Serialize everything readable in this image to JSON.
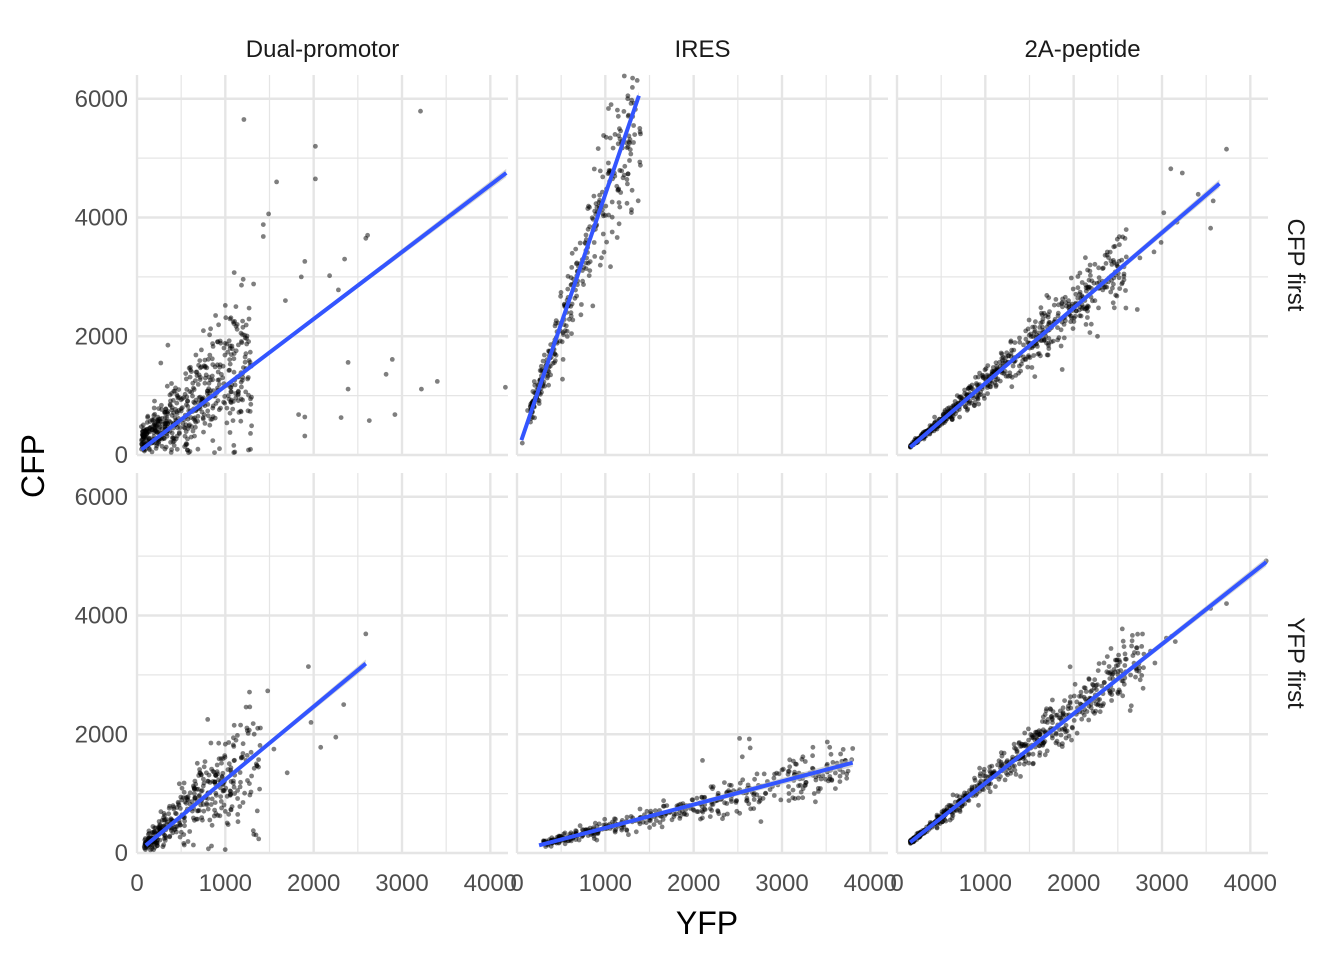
{
  "chart_data": {
    "type": "scatter",
    "xlabel": "YFP",
    "ylabel": "CFP",
    "xlim": [
      0,
      4200
    ],
    "ylim": [
      0,
      6400
    ],
    "x_ticks": [
      0,
      1000,
      2000,
      3000,
      4000
    ],
    "y_ticks": [
      0,
      2000,
      4000,
      6000
    ],
    "x_tick_labels": [
      "0",
      "1000",
      "2000",
      "3000",
      "4000"
    ],
    "y_tick_labels": [
      "0",
      "2000",
      "4000",
      "6000"
    ],
    "grid": true,
    "col_labels": [
      "Dual-promotor",
      "IRES",
      "2A-peptide"
    ],
    "row_labels": [
      "CFP first",
      "YFP first"
    ],
    "colors": {
      "points": "#000000",
      "line": "#3355ff",
      "ribbon": "#bdbdbd",
      "grid": "#e5e5e5"
    },
    "panels": [
      {
        "row": "CFP first",
        "col": "Dual-promotor",
        "fit": {
          "x": [
            50,
            4180
          ],
          "y": [
            90,
            4750
          ]
        },
        "cloud": {
          "n": 520,
          "x_range": [
            50,
            1300
          ],
          "slope": 1.05,
          "intercept": 200,
          "noise": 0.45,
          "seed": 11
        },
        "outliers": [
          [
            1210,
            5650
          ],
          [
            3210,
            5790
          ],
          [
            2020,
            5200
          ],
          [
            1580,
            4600
          ],
          [
            2020,
            4650
          ],
          [
            1490,
            4060
          ],
          [
            1430,
            3880
          ],
          [
            1430,
            3680
          ],
          [
            2610,
            3700
          ],
          [
            2590,
            3650
          ],
          [
            1860,
            3000
          ],
          [
            2180,
            3020
          ],
          [
            2280,
            2780
          ],
          [
            1900,
            3260
          ],
          [
            2350,
            3300
          ],
          [
            1680,
            2600
          ],
          [
            1120,
            2500
          ],
          [
            1000,
            2520
          ],
          [
            890,
            2350
          ],
          [
            1320,
            2880
          ],
          [
            2390,
            1560
          ],
          [
            2890,
            1610
          ],
          [
            2820,
            1360
          ],
          [
            3400,
            1240
          ],
          [
            3220,
            1110
          ],
          [
            4170,
            1140
          ],
          [
            2390,
            1110
          ],
          [
            2920,
            680
          ],
          [
            2630,
            580
          ],
          [
            2310,
            630
          ],
          [
            1900,
            640
          ],
          [
            1830,
            680
          ],
          [
            1900,
            320
          ],
          [
            350,
            1850
          ],
          [
            270,
            1550
          ]
        ]
      },
      {
        "row": "CFP first",
        "col": "IRES",
        "fit": {
          "x": [
            50,
            1380
          ],
          "y": [
            250,
            6050
          ]
        },
        "cloud": {
          "n": 330,
          "x_range": [
            150,
            1400
          ],
          "slope": 4.2,
          "intercept": 100,
          "noise": 0.12,
          "seed": 23
        },
        "outliers": [
          [
            60,
            200
          ],
          [
            1390,
            5500
          ],
          [
            1110,
            5400
          ],
          [
            1010,
            5350
          ],
          [
            120,
            750
          ]
        ]
      },
      {
        "row": "CFP first",
        "col": "2A-peptide",
        "fit": {
          "x": [
            150,
            3650
          ],
          "y": [
            130,
            4570
          ]
        },
        "cloud": {
          "n": 600,
          "x_range": [
            150,
            2600
          ],
          "slope": 1.27,
          "intercept": -50,
          "noise": 0.1,
          "seed": 37
        },
        "outliers": [
          [
            3730,
            5150
          ],
          [
            3100,
            4820
          ],
          [
            3230,
            4750
          ],
          [
            3410,
            4390
          ],
          [
            3580,
            4280
          ],
          [
            3020,
            4080
          ],
          [
            3170,
            3920
          ],
          [
            3550,
            3820
          ],
          [
            2750,
            3320
          ],
          [
            2910,
            3420
          ],
          [
            2460,
            2480
          ],
          [
            2720,
            2450
          ],
          [
            2140,
            2200
          ],
          [
            2270,
            2000
          ],
          [
            1870,
            1440
          ],
          [
            1560,
            1320
          ],
          [
            1300,
            1150
          ],
          [
            2330,
            2780
          ],
          [
            2570,
            3170
          ],
          [
            2990,
            3580
          ]
        ]
      },
      {
        "row": "YFP first",
        "col": "Dual-promotor",
        "fit": {
          "x": [
            100,
            2590
          ],
          "y": [
            130,
            3190
          ]
        },
        "cloud": {
          "n": 380,
          "x_range": [
            80,
            1400
          ],
          "slope": 1.2,
          "intercept": 50,
          "noise": 0.35,
          "seed": 53
        },
        "outliers": [
          [
            2590,
            3690
          ],
          [
            1940,
            3140
          ],
          [
            1480,
            2730
          ],
          [
            2340,
            2500
          ],
          [
            1970,
            2200
          ],
          [
            1100,
            2150
          ],
          [
            800,
            2250
          ],
          [
            2080,
            1780
          ],
          [
            2250,
            1950
          ],
          [
            1550,
            1750
          ],
          [
            1700,
            1350
          ],
          [
            1350,
            1500
          ],
          [
            1200,
            850
          ],
          [
            1000,
            700
          ],
          [
            650,
            550
          ]
        ]
      },
      {
        "row": "YFP first",
        "col": "IRES",
        "fit": {
          "x": [
            250,
            3800
          ],
          "y": [
            130,
            1520
          ]
        },
        "cloud": {
          "n": 420,
          "x_range": [
            300,
            3800
          ],
          "slope": 0.37,
          "intercept": 50,
          "noise": 0.16,
          "seed": 71
        },
        "outliers": [
          [
            2520,
            1930
          ],
          [
            2630,
            1920
          ],
          [
            2640,
            1770
          ],
          [
            2550,
            1620
          ],
          [
            3350,
            1780
          ],
          [
            3540,
            1780
          ],
          [
            3800,
            1760
          ],
          [
            2100,
            1560
          ],
          [
            3000,
            1400
          ],
          [
            3200,
            1250
          ]
        ]
      },
      {
        "row": "YFP first",
        "col": "2A-peptide",
        "fit": {
          "x": [
            150,
            4180
          ],
          "y": [
            180,
            4900
          ]
        },
        "cloud": {
          "n": 560,
          "x_range": [
            150,
            2800
          ],
          "slope": 1.2,
          "intercept": 0,
          "noise": 0.09,
          "seed": 89
        },
        "outliers": [
          [
            4180,
            4920
          ],
          [
            3730,
            4200
          ],
          [
            3550,
            4120
          ],
          [
            3110,
            3650
          ],
          [
            3050,
            3620
          ],
          [
            2770,
            3480
          ],
          [
            2870,
            3400
          ],
          [
            2640,
            2400
          ],
          [
            2920,
            3200
          ],
          [
            3150,
            3560
          ],
          [
            1540,
            1500
          ],
          [
            1700,
            1720
          ],
          [
            2300,
            2380
          ]
        ]
      }
    ]
  }
}
